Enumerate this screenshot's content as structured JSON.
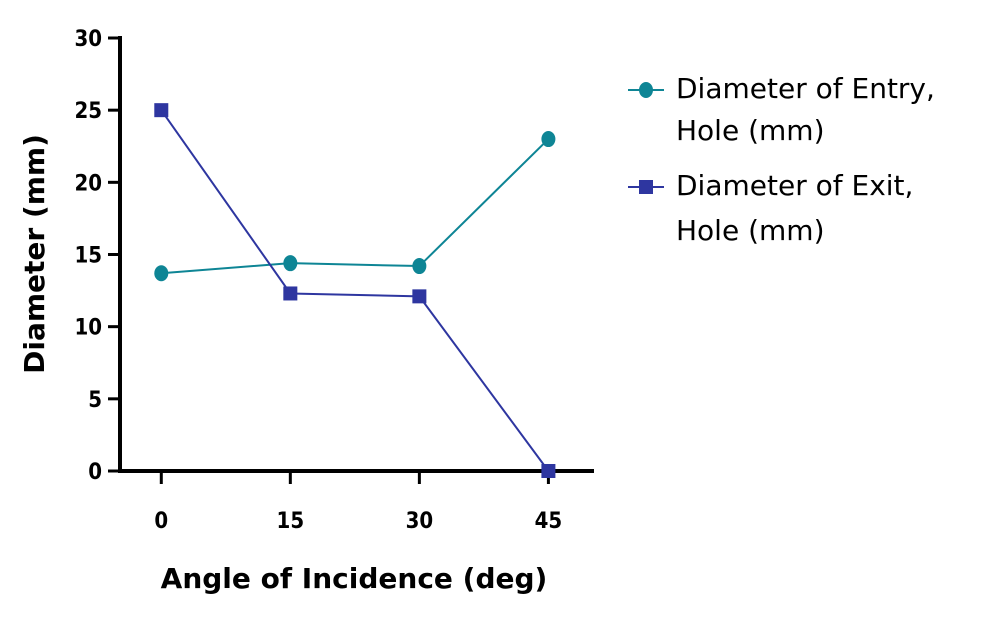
{
  "chart_data": {
    "type": "line",
    "title": "",
    "xlabel": "Angle of Incidence (deg)",
    "ylabel": "Diameter (mm)",
    "x": [
      0,
      15,
      30,
      45
    ],
    "x_ticks": [
      "0",
      "15",
      "30",
      "45"
    ],
    "y_ticks": [
      "0",
      "5",
      "10",
      "15",
      "20",
      "25",
      "30"
    ],
    "xlim": [
      -4.8,
      50.3
    ],
    "ylim": [
      0,
      30
    ],
    "grid": false,
    "legend_position": "right",
    "series": [
      {
        "name": "Diameter of Entry, Hole (mm)",
        "legend_lines": [
          "Diameter of Entry,",
          "Hole (mm)"
        ],
        "marker": "circle",
        "color": "#0e8595",
        "values": [
          13.7,
          14.4,
          14.2,
          23.0
        ]
      },
      {
        "name": "Diameter of Exit, Hole (mm)",
        "legend_lines": [
          "Diameter of Exit,",
          "Hole (mm)"
        ],
        "marker": "square",
        "color": "#2e36a0",
        "values": [
          25.0,
          12.3,
          12.1,
          0.0
        ]
      }
    ]
  }
}
